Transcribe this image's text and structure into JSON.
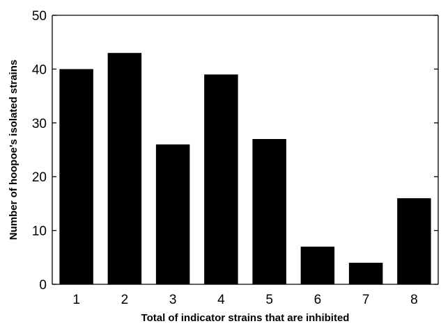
{
  "chart_data": {
    "type": "bar",
    "categories": [
      "1",
      "2",
      "3",
      "4",
      "5",
      "6",
      "7",
      "8"
    ],
    "values": [
      40,
      43,
      26,
      39,
      27,
      7,
      4,
      16
    ],
    "title": "",
    "xlabel": "Total of indicator strains that are inhibited",
    "ylabel": "Number of hoopoe's isolated strains",
    "ylim": [
      0,
      50
    ],
    "yticks": [
      "0",
      "10",
      "20",
      "30",
      "40",
      "50"
    ],
    "bar_color": "#000000",
    "axis_color": "#000000",
    "grid": false,
    "legend": "none"
  }
}
